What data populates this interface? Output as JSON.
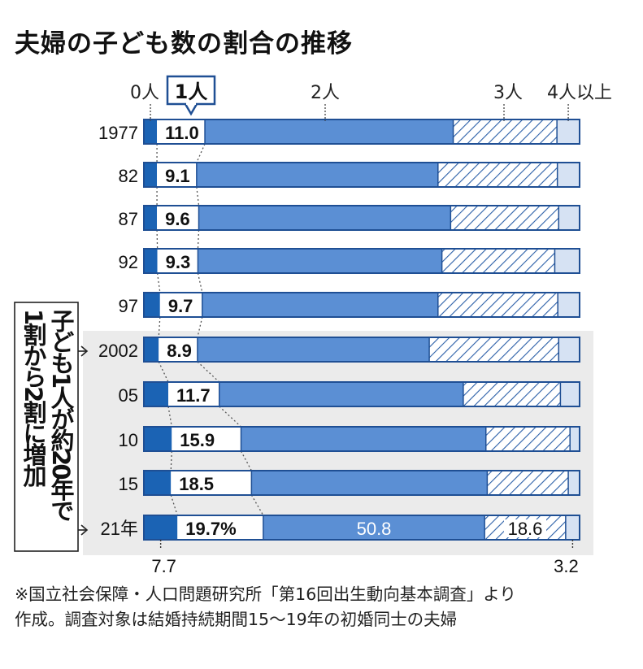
{
  "title": "夫婦の子ども数の割合の推移",
  "chart_data": {
    "type": "bar",
    "stacked": true,
    "orientation": "horizontal",
    "categories": [
      "1977",
      "82",
      "87",
      "92",
      "97",
      "2002",
      "05",
      "10",
      "15",
      "21年"
    ],
    "series": [
      {
        "name": "0人",
        "values": [
          3.0,
          3.0,
          3.0,
          3.1,
          3.7,
          3.4,
          5.6,
          6.4,
          6.2,
          7.7
        ]
      },
      {
        "name": "1人",
        "values": [
          11.0,
          9.1,
          9.6,
          9.3,
          9.7,
          8.9,
          11.7,
          15.9,
          18.5,
          19.7
        ]
      },
      {
        "name": "2人",
        "values": [
          57.0,
          55.4,
          57.8,
          56.0,
          54.1,
          53.2,
          56.0,
          56.2,
          54.1,
          50.8
        ]
      },
      {
        "name": "3人",
        "values": [
          23.8,
          27.4,
          24.8,
          25.9,
          27.5,
          29.7,
          22.3,
          19.3,
          18.6,
          18.6
        ]
      },
      {
        "name": "4人以上",
        "values": [
          5.2,
          5.1,
          4.8,
          5.7,
          5.0,
          4.8,
          4.4,
          2.2,
          2.6,
          3.2
        ]
      }
    ],
    "labels": {
      "one_child": [
        "11.0",
        "9.1",
        "9.6",
        "9.3",
        "9.7",
        "8.9",
        "11.7",
        "15.9",
        "18.5",
        "19.7%"
      ],
      "two_children_last": "50.8",
      "three_children_last": "18.6",
      "zero_last": "7.7",
      "four_plus_last": "3.2"
    },
    "xlim": [
      0,
      100
    ],
    "colors": {
      "zero": "#1b63b4",
      "one": "#ffffff",
      "two": "#5b8fd4",
      "three_stroke": "#2b5fa8",
      "four": "#d6e2f3",
      "outline": "#1f4f94",
      "highlight_bg": "#ebebeb"
    },
    "annotation": {
      "lines": [
        "子ども1人が",
        "約20年で",
        "1割から2割",
        "に増加"
      ],
      "columns": [
        "子ども1人が約20年で",
        "1割から2割に増加"
      ],
      "targets": [
        "2002",
        "21年"
      ]
    }
  },
  "note": {
    "line1": "※国立社会保障・人口問題研究所「第16回出生動向基本調査」より",
    "line2": "作成。調査対象は結婚持続期間15～19年の初婚同士の夫婦"
  }
}
